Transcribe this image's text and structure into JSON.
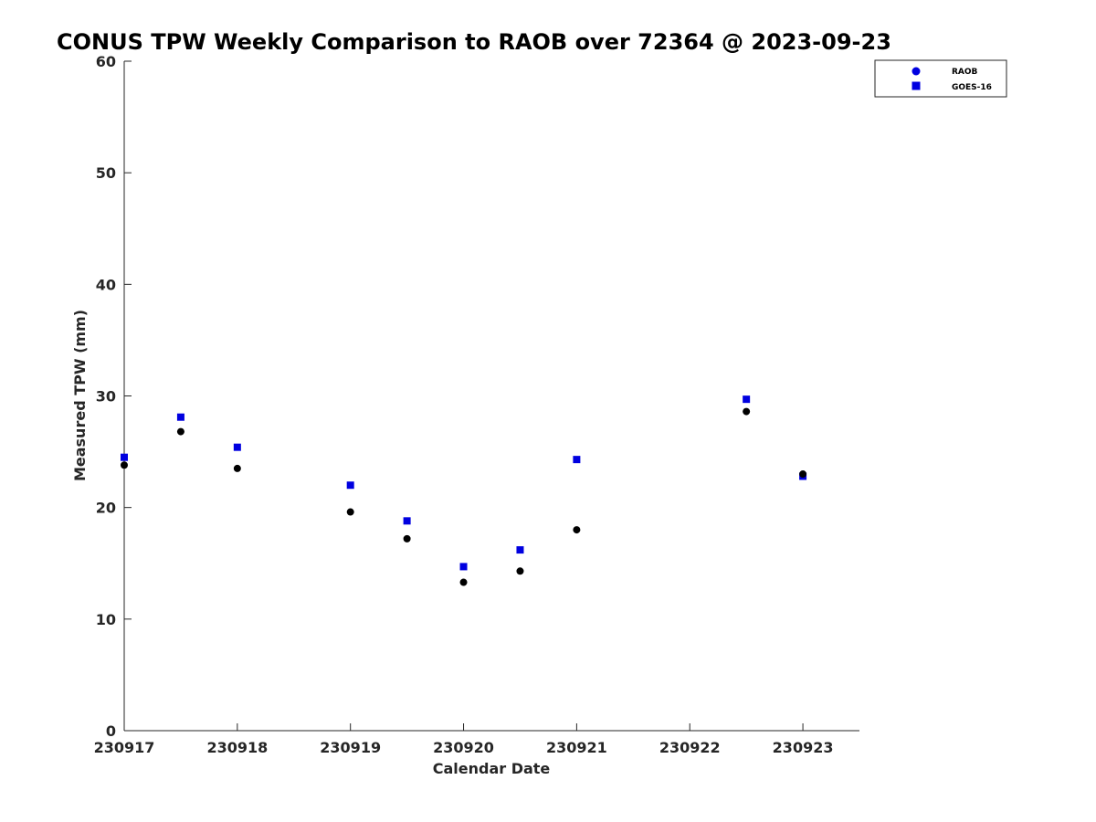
{
  "chart_data": {
    "type": "scatter",
    "title": "CONUS TPW Weekly Comparison to RAOB over 72364 @ 2023-09-23",
    "xlabel": "Calendar Date",
    "ylabel": "Measured TPW (mm)",
    "xlim": [
      "2023-09-17 00:00",
      "2023-09-23 12:00"
    ],
    "ylim": [
      0,
      60
    ],
    "x_ticks": [
      {
        "value": "2023-09-17",
        "label": "230917"
      },
      {
        "value": "2023-09-18",
        "label": "230918"
      },
      {
        "value": "2023-09-19",
        "label": "230919"
      },
      {
        "value": "2023-09-20",
        "label": "230920"
      },
      {
        "value": "2023-09-21",
        "label": "230921"
      },
      {
        "value": "2023-09-22",
        "label": "230922"
      },
      {
        "value": "2023-09-23",
        "label": "230923"
      }
    ],
    "y_ticks": [
      0,
      10,
      20,
      30,
      40,
      50,
      60
    ],
    "grid": false,
    "legend_position": "top-right",
    "series": [
      {
        "name": "RAOB",
        "marker": "circle",
        "legend_color": "#0000e0",
        "color": "#000000",
        "points": [
          {
            "x": "2023-09-17 00:00",
            "y": 23.8
          },
          {
            "x": "2023-09-17 12:00",
            "y": 26.8
          },
          {
            "x": "2023-09-18 00:00",
            "y": 23.5
          },
          {
            "x": "2023-09-19 00:00",
            "y": 19.6
          },
          {
            "x": "2023-09-19 12:00",
            "y": 17.2
          },
          {
            "x": "2023-09-20 00:00",
            "y": 13.3
          },
          {
            "x": "2023-09-20 12:00",
            "y": 14.3
          },
          {
            "x": "2023-09-21 00:00",
            "y": 18.0
          },
          {
            "x": "2023-09-22 12:00",
            "y": 28.6
          },
          {
            "x": "2023-09-23 00:00",
            "y": 23.0
          }
        ]
      },
      {
        "name": "GOES-16",
        "marker": "square",
        "color": "#0000e0",
        "points": [
          {
            "x": "2023-09-17 00:00",
            "y": 24.5
          },
          {
            "x": "2023-09-17 12:00",
            "y": 28.1
          },
          {
            "x": "2023-09-18 00:00",
            "y": 25.4
          },
          {
            "x": "2023-09-19 00:00",
            "y": 22.0
          },
          {
            "x": "2023-09-19 12:00",
            "y": 18.8
          },
          {
            "x": "2023-09-20 00:00",
            "y": 14.7
          },
          {
            "x": "2023-09-20 12:00",
            "y": 16.2
          },
          {
            "x": "2023-09-21 00:00",
            "y": 24.3
          },
          {
            "x": "2023-09-22 12:00",
            "y": 29.7
          },
          {
            "x": "2023-09-23 00:00",
            "y": 22.8
          }
        ]
      }
    ]
  }
}
